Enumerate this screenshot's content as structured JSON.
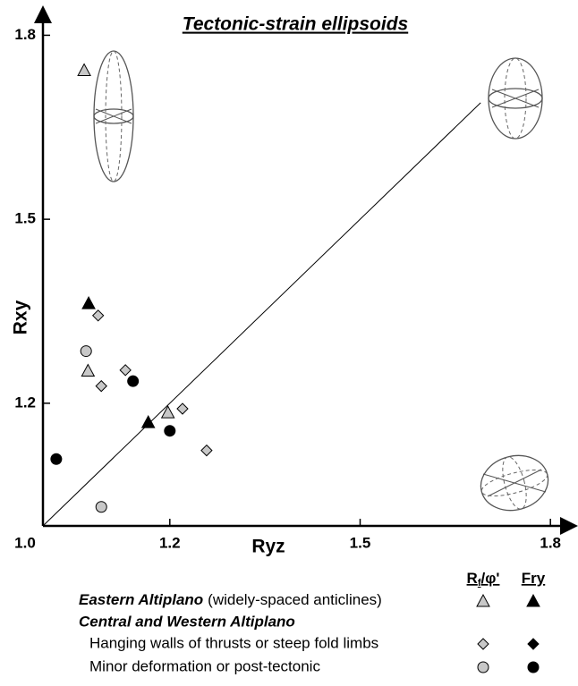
{
  "chart_data": {
    "type": "scatter",
    "title": "Tectonic-strain ellipsoids",
    "x_label": "Ryz",
    "y_label": "Rxy",
    "xlim": [
      1.0,
      1.835
    ],
    "ylim": [
      1.0,
      1.84
    ],
    "xticks": [
      {
        "value": 1.0,
        "label": "1.0"
      },
      1.2,
      1.5,
      1.8
    ],
    "yticks": [
      1.2,
      1.5,
      1.8
    ],
    "reference_line": [
      [
        1.0,
        1.0
      ],
      [
        1.69,
        1.69
      ]
    ],
    "methods": [
      {
        "main": "R",
        "sub": "f",
        "tail": "/φ'"
      },
      {
        "main": "Fry"
      }
    ],
    "heading": "Central and Western Altiplano",
    "groups": [
      {
        "name": "Eastern Altiplano",
        "note": "(widely-spaced anticlines)",
        "marker": "triangle",
        "series": [
          {
            "color": "#c8c8c8",
            "x": [
              1.065,
              1.071,
              1.197
            ],
            "y": [
              1.743,
              1.253,
              1.185
            ]
          },
          {
            "color": "#000000",
            "x": [
              1.072,
              1.166
            ],
            "y": [
              1.363,
              1.169
            ]
          }
        ]
      },
      {
        "name": "Hanging walls of thrusts or steep fold limbs",
        "marker": "diamond",
        "series": [
          {
            "color": "#c8c8c8",
            "x": [
              1.087,
              1.092,
              1.13,
              1.22,
              1.258
            ],
            "y": [
              1.343,
              1.228,
              1.254,
              1.191,
              1.123
            ]
          },
          {
            "color": "#000000",
            "x": [],
            "y": []
          }
        ]
      },
      {
        "name": "Minor deformation or post-tectonic",
        "marker": "circle",
        "series": [
          {
            "color": "#c8c8c8",
            "x": [
              1.068,
              1.092
            ],
            "y": [
              1.285,
              1.031
            ]
          },
          {
            "color": "#000000",
            "x": [
              1.021,
              1.142,
              1.2
            ],
            "y": [
              1.109,
              1.236,
              1.155
            ]
          }
        ]
      }
    ]
  }
}
